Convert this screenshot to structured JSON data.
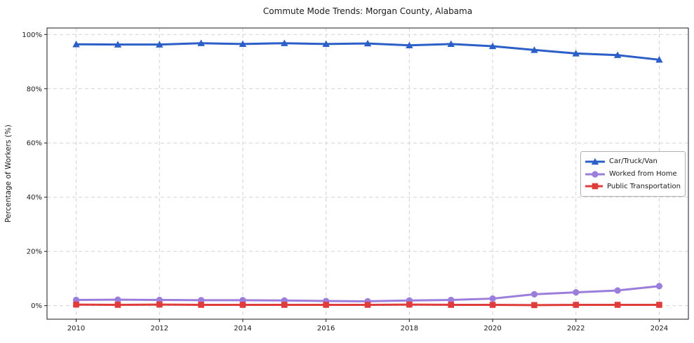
{
  "chart_data": {
    "type": "line",
    "title": "Commute Mode Trends: Morgan County, Alabama",
    "xlabel": "",
    "ylabel": "Percentage of Workers (%)",
    "x": [
      2010,
      2011,
      2012,
      2013,
      2014,
      2015,
      2016,
      2017,
      2018,
      2019,
      2020,
      2021,
      2022,
      2023,
      2024
    ],
    "series": [
      {
        "name": "Car/Truck/Van",
        "color": "#2b5fc7",
        "marker": "triangle",
        "values": [
          96.4,
          96.3,
          96.3,
          96.8,
          96.5,
          96.8,
          96.5,
          96.7,
          96.0,
          96.5,
          95.7,
          94.3,
          93.0,
          92.4,
          90.7
        ]
      },
      {
        "name": "Worked from Home",
        "color": "#9b7ddb",
        "marker": "circle",
        "values": [
          2.1,
          2.2,
          2.1,
          2.0,
          2.0,
          1.9,
          1.7,
          1.6,
          1.9,
          2.1,
          2.6,
          4.2,
          4.9,
          5.6,
          7.2
        ]
      },
      {
        "name": "Public Transportation",
        "color": "#e03c3c",
        "marker": "square",
        "values": [
          0.4,
          0.3,
          0.4,
          0.3,
          0.3,
          0.3,
          0.3,
          0.3,
          0.4,
          0.3,
          0.3,
          0.2,
          0.3,
          0.3,
          0.3
        ]
      }
    ],
    "x_ticks": [
      {
        "value": 2010,
        "label": "2010"
      },
      {
        "value": 2012,
        "label": "2012"
      },
      {
        "value": 2014,
        "label": "2014"
      },
      {
        "value": 2016,
        "label": "2016"
      },
      {
        "value": 2018,
        "label": "2018"
      },
      {
        "value": 2020,
        "label": "2020"
      },
      {
        "value": 2022,
        "label": "2022"
      },
      {
        "value": 2024,
        "label": "2024"
      }
    ],
    "y_ticks": [
      {
        "value": 0,
        "label": "0%"
      },
      {
        "value": 20,
        "label": "20%"
      },
      {
        "value": 40,
        "label": "40%"
      },
      {
        "value": 60,
        "label": "60%"
      },
      {
        "value": 80,
        "label": "80%"
      },
      {
        "value": 100,
        "label": "100%"
      }
    ],
    "xlim": [
      2009.3,
      2024.7
    ],
    "ylim": [
      -5,
      102.4
    ],
    "grid": true,
    "grid_style": "dashed",
    "legend_position": "center-right"
  }
}
